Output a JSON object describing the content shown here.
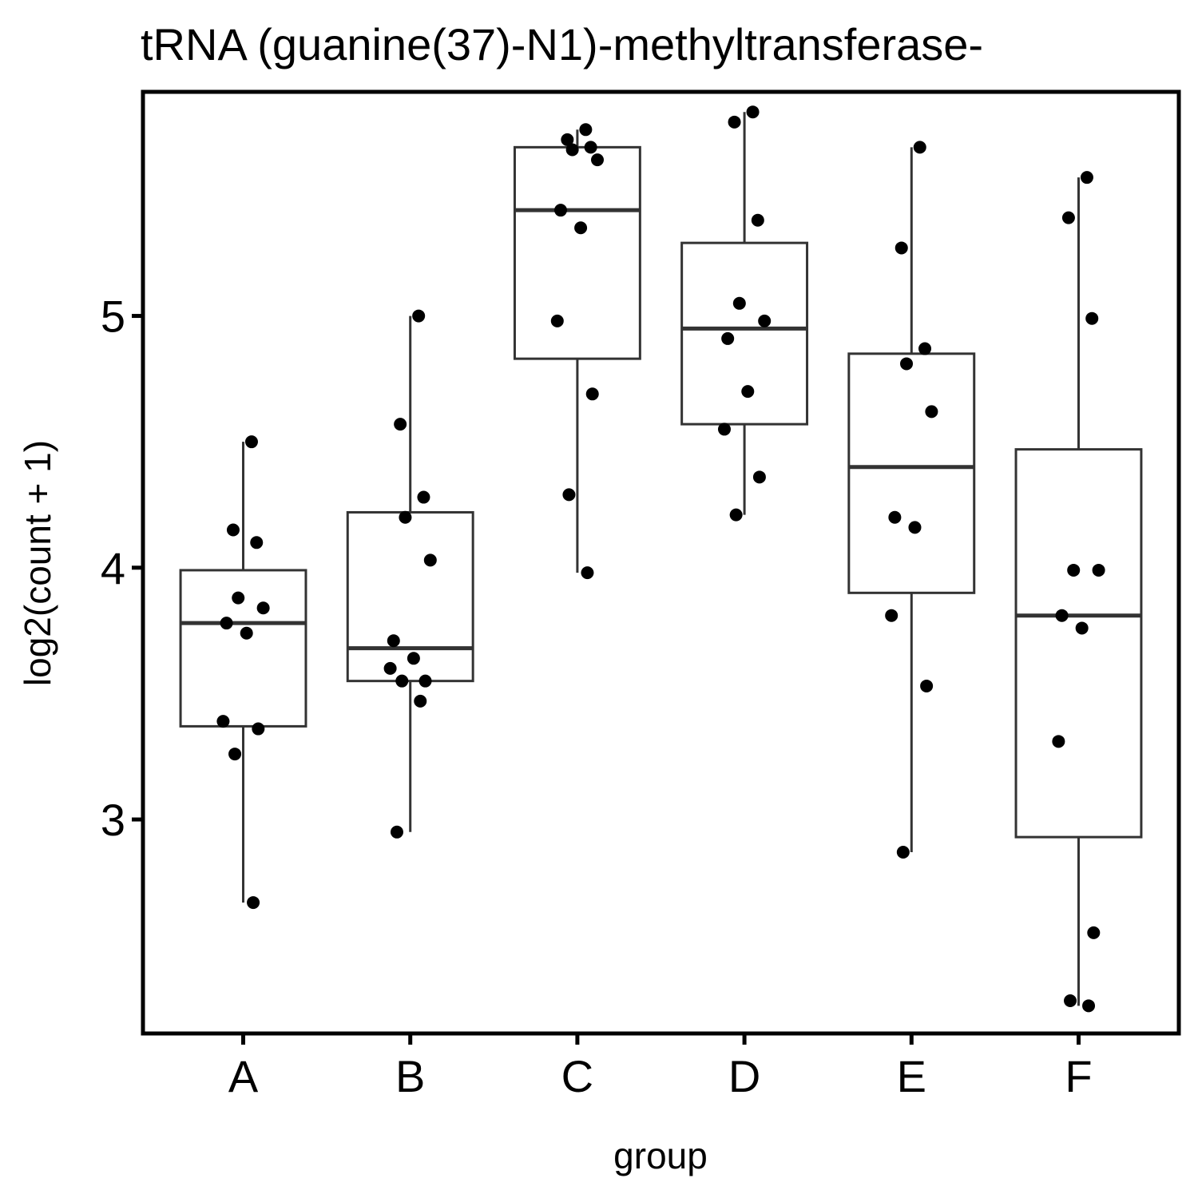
{
  "chart_data": {
    "type": "box",
    "title": "tRNA (guanine(37)-N1)-methyltransferase-",
    "xlabel": "group",
    "ylabel": "log2(count + 1)",
    "ylim": [
      2.15,
      5.89
    ],
    "yticks": [
      3,
      4,
      5
    ],
    "grid": false,
    "categories": [
      "A",
      "B",
      "C",
      "D",
      "E",
      "F"
    ],
    "boxes": [
      {
        "group": "A",
        "whisker_low": 2.67,
        "q1": 3.37,
        "median": 3.78,
        "q3": 3.99,
        "whisker_high": 4.5
      },
      {
        "group": "B",
        "whisker_low": 2.95,
        "q1": 3.55,
        "median": 3.68,
        "q3": 4.22,
        "whisker_high": 5.0
      },
      {
        "group": "C",
        "whisker_low": 3.98,
        "q1": 4.83,
        "median": 5.42,
        "q3": 5.67,
        "whisker_high": 5.74
      },
      {
        "group": "D",
        "whisker_low": 4.21,
        "q1": 4.57,
        "median": 4.95,
        "q3": 5.29,
        "whisker_high": 5.81
      },
      {
        "group": "E",
        "whisker_low": 2.87,
        "q1": 3.9,
        "median": 4.4,
        "q3": 4.85,
        "whisker_high": 5.67
      },
      {
        "group": "F",
        "whisker_low": 2.26,
        "q1": 2.93,
        "median": 3.81,
        "q3": 4.47,
        "whisker_high": 5.55
      }
    ],
    "points": [
      {
        "group": "A",
        "values": [
          4.5,
          4.15,
          4.1,
          3.88,
          3.84,
          3.78,
          3.74,
          3.39,
          3.36,
          3.26,
          2.67
        ]
      },
      {
        "group": "B",
        "values": [
          5.0,
          4.57,
          4.28,
          4.2,
          4.03,
          3.71,
          3.64,
          3.6,
          3.55,
          3.55,
          3.47,
          2.95
        ]
      },
      {
        "group": "C",
        "values": [
          5.74,
          5.7,
          5.67,
          5.66,
          5.62,
          5.42,
          5.35,
          4.98,
          4.69,
          4.29,
          3.98
        ]
      },
      {
        "group": "D",
        "values": [
          5.81,
          5.77,
          5.38,
          5.05,
          4.98,
          4.91,
          4.7,
          4.55,
          4.36,
          4.21
        ]
      },
      {
        "group": "E",
        "values": [
          5.67,
          5.27,
          4.87,
          4.81,
          4.62,
          4.2,
          4.16,
          3.81,
          3.53,
          2.87
        ]
      },
      {
        "group": "F",
        "values": [
          5.55,
          5.39,
          4.99,
          3.99,
          3.99,
          3.81,
          3.76,
          3.31,
          2.55,
          2.28,
          2.26
        ]
      }
    ]
  }
}
